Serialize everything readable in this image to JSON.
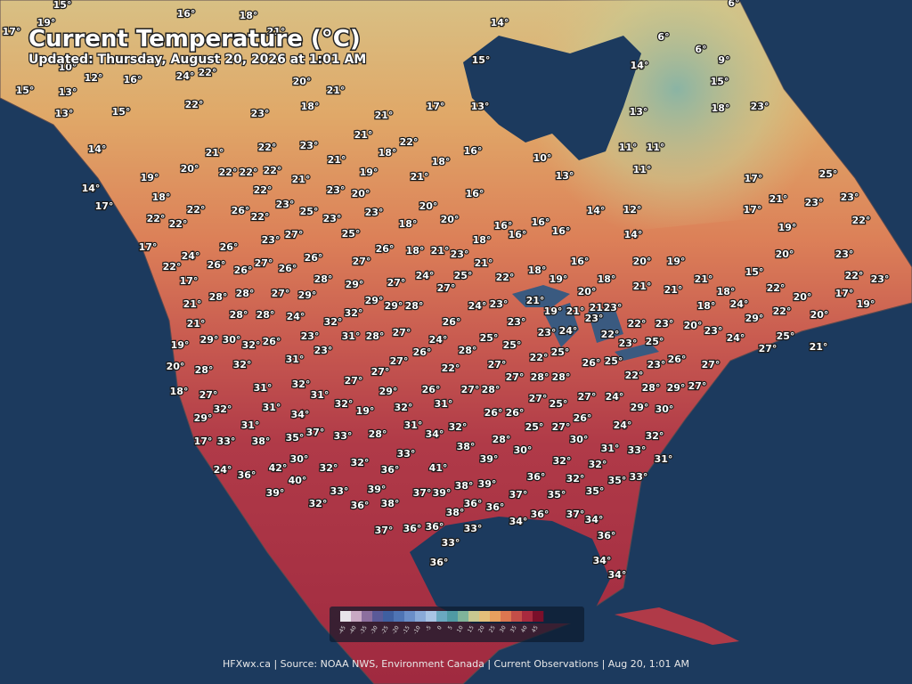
{
  "header": {
    "title": "Current Temperature (°C)",
    "subtitle": "Updated: Thursday, August 20, 2026 at 1:01 AM"
  },
  "stations": [
    "15°",
    "19°",
    "16°",
    "18°",
    "17°",
    "21°",
    "14°",
    "6°",
    "6°",
    "6°",
    "9°",
    "14°",
    "15°",
    "10°",
    "12°",
    "16°",
    "24°",
    "22°",
    "20°",
    "21°",
    "15°",
    "15°",
    "13°",
    "18°",
    "15°",
    "22°",
    "23°",
    "17°",
    "13°",
    "13°",
    "18°",
    "23°",
    "13°",
    "21°",
    "14°",
    "22°",
    "23°",
    "21°",
    "22°",
    "18°",
    "16°",
    "11°",
    "11°",
    "21°",
    "21°",
    "18°",
    "10°",
    "19°",
    "20°",
    "22°",
    "22°",
    "22°",
    "21°",
    "19°",
    "21°",
    "11°",
    "13°",
    "25°",
    "17°",
    "14°",
    "18°",
    "22°",
    "23°",
    "20°",
    "16°",
    "21°",
    "23°",
    "23°",
    "17°",
    "22°",
    "26°",
    "23°",
    "25°",
    "20°",
    "23°",
    "14°",
    "12°",
    "17°",
    "22°",
    "22°",
    "22°",
    "23°",
    "18°",
    "20°",
    "16°",
    "16°",
    "16°",
    "19°",
    "22°",
    "17°",
    "24°",
    "26°",
    "23°",
    "27°",
    "25°",
    "26°",
    "18°",
    "21°",
    "23°",
    "18°",
    "16°",
    "14°",
    "22°",
    "26°",
    "26°",
    "27°",
    "26°",
    "26°",
    "27°",
    "21°",
    "18°",
    "16°",
    "20°",
    "19°",
    "20°",
    "23°",
    "17°",
    "28°",
    "28°",
    "27°",
    "29°",
    "28°",
    "29°",
    "27°",
    "24°",
    "25°",
    "22°",
    "19°",
    "18°",
    "21°",
    "21°",
    "21°",
    "15°",
    "22°",
    "22°",
    "23°",
    "20°",
    "18°",
    "17°",
    "19°",
    "27°",
    "20°",
    "21°",
    "29°",
    "29°",
    "28°",
    "24°",
    "23°",
    "21°",
    "19°",
    "21°",
    "21°",
    "23°",
    "24°",
    "18°",
    "22°",
    "20°",
    "28°",
    "28°",
    "24°",
    "32°",
    "26°",
    "23°",
    "23°",
    "22°",
    "23°",
    "29°",
    "21°",
    "32°",
    "27°",
    "23°",
    "24°",
    "22°",
    "20°",
    "23°",
    "23°",
    "31°",
    "28°",
    "24°",
    "25°",
    "25°",
    "23°",
    "25°",
    "24°",
    "25°",
    "29°",
    "30°",
    "32°",
    "26°",
    "23°",
    "28°",
    "26°",
    "22°",
    "25°",
    "19°",
    "27°",
    "21°",
    "31°",
    "27°",
    "26°",
    "25°",
    "26°",
    "27°",
    "20°",
    "32°",
    "28°",
    "27°",
    "22°",
    "27°",
    "27°",
    "28°",
    "28°",
    "23°",
    "22°",
    "27°",
    "18°",
    "31°",
    "32°",
    "31°",
    "29°",
    "26°",
    "27°",
    "28°",
    "27°",
    "27°",
    "24°",
    "28°",
    "29°",
    "27°",
    "27°",
    "31°",
    "32°",
    "32°",
    "31°",
    "25°",
    "29°",
    "30°",
    "32°",
    "34°",
    "19°",
    "26°",
    "26°",
    "26°",
    "29°",
    "31°",
    "37°",
    "33°",
    "28°",
    "31°",
    "34°",
    "32°",
    "25°",
    "27°",
    "24°",
    "35°",
    "17°",
    "33°",
    "38°",
    "28°",
    "30°",
    "32°",
    "38°",
    "33°",
    "30°",
    "31°",
    "33°",
    "32°",
    "31°",
    "30°",
    "39°",
    "32°",
    "36°",
    "41°",
    "32°",
    "42°",
    "24°",
    "36°",
    "32°",
    "36°",
    "32°",
    "35°",
    "33°",
    "40°",
    "38°",
    "39°",
    "39°",
    "33°",
    "39°",
    "37°",
    "39°",
    "37°",
    "35°",
    "35°",
    "32°",
    "36°",
    "38°",
    "36°",
    "36°",
    "38°",
    "34°",
    "36°",
    "37°",
    "34°",
    "37°",
    "36°",
    "36°",
    "33°",
    "36°",
    "33°",
    "34°",
    "36°",
    "34°"
  ],
  "legend": {
    "ticks": [
      "-45",
      "-40",
      "-35",
      "-30",
      "-25",
      "-20",
      "-15",
      "-10",
      "-5",
      "0",
      "5",
      "10",
      "15",
      "20",
      "25",
      "30",
      "35",
      "40",
      "45"
    ],
    "colors": [
      "#e8e4ea",
      "#c9a9c4",
      "#8c6f9e",
      "#5a5a98",
      "#3f5fa0",
      "#4f74b4",
      "#6a8ec8",
      "#89aad8",
      "#a8c4e4",
      "#6aa8c0",
      "#4f9aa4",
      "#7fb49a",
      "#c8c890",
      "#e4c07a",
      "#e8a05e",
      "#dc7650",
      "#c44e48",
      "#a82a3e",
      "#7a0f2a"
    ]
  },
  "footer": "HFXwx.ca | Source: NOAA NWS, Environment Canada | Current Observations | Aug 20, 1:01 AM"
}
